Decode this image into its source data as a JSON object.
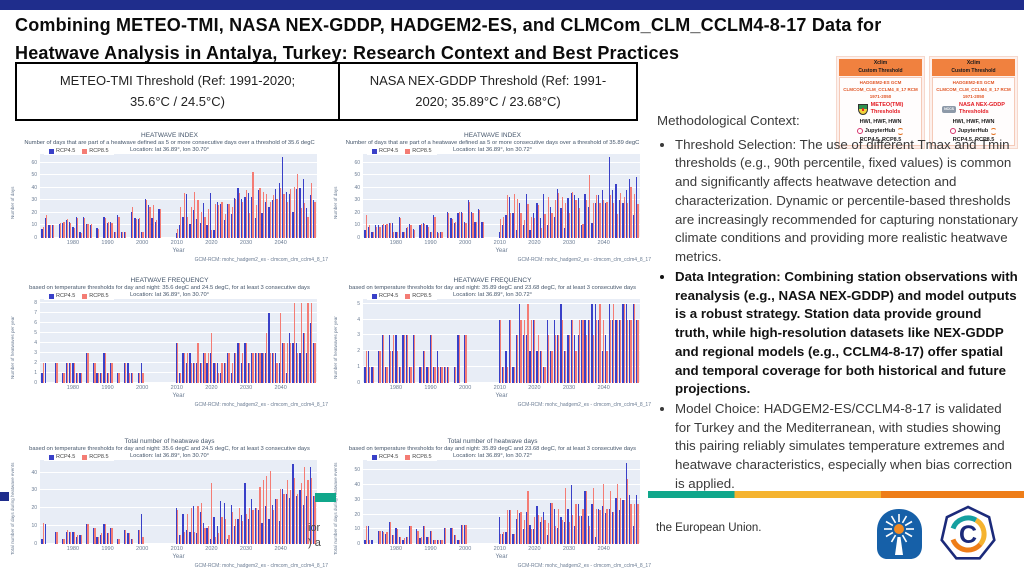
{
  "slide": {
    "title_line1": "Combining METEO-TMI, NASA NEX-GDDP, HADGEM2-ES, and CLMCom_CLM_CCLM4-8-17 Data for",
    "title_line2": "Heatwave Analysis in Antalya, Turkey: Research Context and Best Practices",
    "top_bar_color": "#1f2d8c"
  },
  "threshold_boxes": [
    {
      "label": "METEO-TMI Threshold (Ref: 1991-2020; 35.6°C / 24.5°C)"
    },
    {
      "label": "NASA NEX-GDDP Threshold (Ref: 1991-2020; 35.89°C / 23.68°C)"
    }
  ],
  "cards": [
    {
      "header_tool": "Xclim",
      "header_sub": "Custom Threshold",
      "gcm": "HADGEM2-ES GCM",
      "rcm": "CLMCOM_CLM_CCLM4_8_17 RCM",
      "period": "1971-2050",
      "threshold_source": "METEO(TMI)",
      "threshold_word": "Thresholds",
      "metrics": "HWI, HWF, HWN",
      "platform": "JupyterHub",
      "scenarios": "RCP4.5, RCP8.5"
    },
    {
      "header_tool": "Xclim",
      "header_sub": "Custom Threshold",
      "gcm": "HADGEM2-ES GCM",
      "rcm": "CLMCOM_CLM_CCLM4_8_17 RCM",
      "period": "1971-2050",
      "badge_label": "NCCS",
      "threshold_source": "NASA NEX-GDDP",
      "threshold_word": "Thresholds",
      "metrics": "HWI, HWF, HWN",
      "platform": "JupyterHub",
      "scenarios": "RCP4.5, RCP8.5"
    }
  ],
  "right_panel": {
    "heading": "Methodological Context:",
    "bullets": [
      {
        "bold": false,
        "text": "Threshold Selection: The use of different Tmax and Tmin thresholds (e.g., 90th percentile, fixed values) is common and significantly affects heatwave detection and characterization. Dynamic or percentile-based thresholds are increasingly recommended for capturing nonstationary climate conditions and providing more realistic heatwave metrics."
      },
      {
        "bold": true,
        "text": "Data Integration: Combining station observations with reanalysis (e.g., NASA NEX-GDDP) and model outputs is a robust strategy. Station data provide ground truth, while high-resolution datasets like NEX-GDDP and regional models (e.g., CCLM4-8-17) offer spatial and temporal coverage for both historical and future projections."
      },
      {
        "bold": false,
        "text": "Model Choice: HADGEM2-ES/CCLM4-8-17 is validated for Turkey and the Mediterranean, with studies showing this pairing reliably simulates temperature extremes and heatwave characteristics, especially when bias correction is applied."
      }
    ]
  },
  "footer": {
    "eu_text": "the European Union.",
    "partial_text_line1": "ior",
    "partial_text_line2": ") a",
    "bar_navy": "#1f2d8c",
    "bar_teal": "#10a78b",
    "bar_yellow": "#f5b32f",
    "bar_orange": "#ee7d18"
  },
  "chart_data": [
    {
      "type": "bar",
      "title": "HEATWAVE INDEX",
      "subtitle": "Number of days that are part of a heatwave defined as 5 or more consecutive days over a threshold of 35.6 degC",
      "location": "Location: lat 36.89°, lon 30.70°",
      "ylabel": "Number of days",
      "xlabel": "Year",
      "footer": "GCM-RCM: mohc_hadgem2_es - clmcom_clm_cclm4_8_17",
      "legend": [
        "RCP4.5",
        "RCP8.5"
      ],
      "colors": {
        "rcp45": "#3940c8",
        "rcp85": "#f47c74"
      },
      "ylim": 67,
      "yticks": [
        0,
        10,
        20,
        30,
        40,
        50,
        60
      ],
      "year_start": 1971,
      "xticks": [
        1980,
        1990,
        2000,
        2010,
        2020,
        2030,
        2040
      ],
      "rcp45": [
        7,
        16,
        10,
        10,
        0,
        11,
        12,
        14,
        13,
        9,
        17,
        5,
        17,
        11,
        10,
        0,
        8,
        0,
        17,
        12,
        13,
        5,
        18,
        5,
        5,
        0,
        21,
        16,
        15,
        5,
        31,
        26,
        16,
        13,
        23,
        null,
        null,
        null,
        null,
        4,
        10,
        17,
        35,
        11,
        22,
        15,
        12,
        28,
        10,
        36,
        6,
        29,
        27,
        14,
        27,
        19,
        32,
        40,
        31,
        33,
        36,
        33,
        16,
        38,
        20,
        29,
        25,
        30,
        39,
        44,
        65,
        37,
        35,
        21,
        39,
        40,
        47,
        24,
        34,
        30
      ],
      "rcp85": [
        9,
        18,
        10,
        10,
        0,
        12,
        13,
        15,
        12,
        8,
        16,
        4,
        16,
        11,
        11,
        0,
        7,
        0,
        16,
        13,
        12,
        5,
        17,
        5,
        5,
        0,
        25,
        15,
        16,
        5,
        30,
        25,
        26,
        14,
        23,
        null,
        null,
        null,
        null,
        7,
        25,
        36,
        17,
        25,
        37,
        30,
        21,
        17,
        23,
        6,
        27,
        26,
        29,
        19,
        27,
        25,
        31,
        36,
        29,
        38,
        20,
        53,
        26,
        40,
        37,
        35,
        29,
        34,
        31,
        40,
        35,
        29,
        39,
        41,
        51,
        24,
        28,
        17,
        44,
        29
      ]
    },
    {
      "type": "bar",
      "title": "HEATWAVE INDEX",
      "subtitle": "Number of days that are part of a heatwave defined as 5 or more consecutive days over a threshold of 35.89 degC",
      "location": "Location: lat 36.89°, lon 30.72°",
      "ylabel": "Number of days",
      "xlabel": "Year",
      "footer": "GCM-RCM: mohc_hadgem2_es - clmcom_clm_cclm4_8_17",
      "legend": [
        "RCP4.5",
        "RCP8.5"
      ],
      "colors": {
        "rcp45": "#3940c8",
        "rcp85": "#f47c74"
      },
      "ylim": 67,
      "yticks": [
        0,
        10,
        20,
        30,
        40,
        50,
        60
      ],
      "year_start": 1971,
      "xticks": [
        1980,
        1990,
        2000,
        2010,
        2020,
        2030,
        2040
      ],
      "rcp45": [
        6,
        9,
        5,
        10,
        10,
        10,
        10,
        12,
        12,
        5,
        17,
        5,
        8,
        11,
        7,
        0,
        10,
        12,
        10,
        5,
        18,
        5,
        5,
        0,
        21,
        16,
        12,
        20,
        21,
        13,
        30,
        21,
        13,
        23,
        13,
        null,
        null,
        null,
        null,
        5,
        10,
        18,
        33,
        20,
        6,
        28,
        10,
        35,
        6,
        20,
        28,
        16,
        35,
        10,
        25,
        17,
        39,
        24,
        8,
        32,
        36,
        34,
        32,
        10,
        35,
        25,
        12,
        28,
        34,
        38,
        28,
        65,
        38,
        43,
        30,
        28,
        38,
        47,
        18,
        49
      ],
      "rcp85": [
        18,
        10,
        5,
        9,
        9,
        11,
        11,
        12,
        5,
        5,
        16,
        5,
        9,
        10,
        6,
        0,
        11,
        11,
        9,
        5,
        17,
        4,
        5,
        0,
        20,
        15,
        13,
        21,
        20,
        12,
        29,
        20,
        13,
        22,
        13,
        null,
        null,
        null,
        null,
        15,
        17,
        34,
        20,
        35,
        31,
        20,
        14,
        27,
        17,
        16,
        26,
        8,
        19,
        33,
        20,
        30,
        36,
        33,
        28,
        20,
        37,
        30,
        24,
        11,
        30,
        50,
        28,
        34,
        28,
        30,
        29,
        34,
        28,
        19,
        36,
        33,
        28,
        41,
        35,
        27
      ]
    },
    {
      "type": "bar",
      "title": "HEATWAVE FREQUENCY",
      "subtitle": "based on temperature thresholds for day and night: 35.6 degC and 24.5 degC, for at least 3 consecutive days",
      "location": "Location: lat 36.89°, lon 30.70°",
      "ylabel": "Number of heatwaves per year",
      "xlabel": "Year",
      "footer": "GCM-RCM: mohc_hadgem2_es - clmcom_clm_cclm4_8_17",
      "legend": [
        "RCP4.5",
        "RCP8.5"
      ],
      "colors": {
        "rcp45": "#3940c8",
        "rcp85": "#f47c74"
      },
      "ylim": 8.4,
      "yticks": [
        0,
        1,
        2,
        3,
        4,
        5,
        6,
        7,
        8
      ],
      "year_start": 1971,
      "xticks": [
        1980,
        1990,
        2000,
        2010,
        2020,
        2030,
        2040
      ],
      "rcp45": [
        1,
        2,
        0,
        0,
        2,
        0,
        1,
        2,
        2,
        2,
        1,
        1,
        0,
        3,
        0,
        2,
        1,
        1,
        3,
        1,
        2,
        0,
        1,
        0,
        2,
        2,
        1,
        0,
        1,
        2,
        0,
        0,
        0,
        0,
        0,
        null,
        null,
        null,
        null,
        4,
        1,
        3,
        2,
        3,
        2,
        2,
        2,
        3,
        2,
        3,
        2,
        2,
        1,
        2,
        3,
        1,
        3,
        4,
        2,
        4,
        2,
        3,
        3,
        3,
        3,
        3,
        7,
        3,
        3,
        2,
        4,
        1,
        5,
        4,
        4,
        3,
        5,
        3,
        6,
        4
      ],
      "rcp85": [
        2,
        0,
        0,
        0,
        2,
        0,
        1,
        2,
        2,
        2,
        1,
        1,
        0,
        3,
        0,
        2,
        1,
        1,
        3,
        1,
        2,
        0,
        1,
        0,
        2,
        1,
        1,
        0,
        1,
        1,
        0,
        0,
        0,
        0,
        0,
        null,
        null,
        null,
        null,
        4,
        1,
        3,
        3,
        2,
        2,
        4,
        2,
        3,
        3,
        5,
        2,
        1,
        2,
        2,
        3,
        2,
        3,
        4,
        3,
        4,
        2,
        3,
        3,
        3,
        3,
        5,
        3,
        3,
        2,
        7,
        4,
        4,
        4,
        8,
        3,
        8,
        5,
        8,
        8,
        4
      ]
    },
    {
      "type": "bar",
      "title": "HEATWAVE FREQUENCY",
      "subtitle": "based on temperature thresholds for day and night: 35.89 degC and 23.68 degC, for at least 3 consecutive days",
      "location": "Location: lat 36.89°, lon 30.72°",
      "ylabel": "Number of heatwaves per year",
      "xlabel": "Year",
      "footer": "GCM-RCM: mohc_hadgem2_es - clmcom_clm_cclm4_8_17",
      "legend": [
        "RCP4.5",
        "RCP8.5"
      ],
      "colors": {
        "rcp45": "#3940c8",
        "rcp85": "#f47c74"
      },
      "ylim": 5.3,
      "yticks": [
        0,
        1,
        2,
        3,
        4,
        5
      ],
      "year_start": 1971,
      "xticks": [
        1980,
        1990,
        2000,
        2010,
        2020,
        2030,
        2040
      ],
      "rcp45": [
        1,
        2,
        1,
        0,
        2,
        3,
        1,
        3,
        2,
        3,
        1,
        3,
        3,
        1,
        3,
        0,
        1,
        2,
        1,
        3,
        1,
        2,
        1,
        1,
        1,
        0,
        1,
        3,
        0,
        3,
        0,
        0,
        0,
        0,
        0,
        null,
        null,
        null,
        null,
        4,
        1,
        2,
        4,
        1,
        3,
        5,
        3,
        3,
        2,
        4,
        2,
        2,
        1,
        4,
        2,
        4,
        3,
        5,
        2,
        3,
        4,
        3,
        3,
        4,
        4,
        4,
        5,
        5,
        4,
        2,
        3,
        5,
        4,
        4,
        4,
        5,
        5,
        4,
        5,
        4
      ],
      "rcp85": [
        2,
        1,
        1,
        0,
        2,
        3,
        1,
        2,
        3,
        2,
        1,
        3,
        3,
        1,
        3,
        0,
        1,
        2,
        1,
        3,
        1,
        1,
        1,
        1,
        1,
        0,
        1,
        3,
        0,
        3,
        0,
        0,
        0,
        0,
        0,
        null,
        null,
        null,
        null,
        4,
        1,
        1,
        4,
        1,
        3,
        4,
        4,
        5,
        4,
        4,
        3,
        2,
        1,
        3,
        2,
        3,
        3,
        4,
        2,
        3,
        4,
        2,
        4,
        4,
        3,
        4,
        3,
        4,
        5,
        4,
        2,
        4,
        5,
        4,
        4,
        5,
        4,
        4,
        5,
        4
      ]
    },
    {
      "type": "bar",
      "title": "Total number of heatwave days",
      "subtitle": "based on temperature thresholds for day and night: 35.6 degC and 24.5 degC, for at least 3 consecutive days",
      "location": "Location: lat 36.89°, lon 30.70°",
      "ylabel": "Total number of days during heatwave events",
      "xlabel": "Year",
      "footer": "GCM-RCM: mohc_hadgem2_es - clmcom_clm_cclm4_8_17",
      "legend": [
        "RCP4.5",
        "RCP8.5"
      ],
      "colors": {
        "rcp45": "#3940c8",
        "rcp85": "#f47c74"
      },
      "ylim": 47,
      "yticks": [
        0,
        10,
        20,
        30,
        40
      ],
      "year_start": 1971,
      "xticks": [
        1980,
        1990,
        2000,
        2010,
        2020,
        2030,
        2040
      ],
      "rcp45": [
        3,
        11,
        0,
        0,
        7,
        0,
        3,
        7,
        7,
        7,
        4,
        5,
        0,
        11,
        0,
        9,
        4,
        5,
        11,
        6,
        9,
        0,
        3,
        0,
        8,
        6,
        3,
        0,
        8,
        17,
        0,
        0,
        0,
        0,
        0,
        null,
        null,
        null,
        null,
        20,
        5,
        17,
        8,
        7,
        21,
        6,
        18,
        12,
        9,
        3,
        15,
        10,
        24,
        23,
        3,
        22,
        10,
        14,
        16,
        34,
        14,
        25,
        20,
        19,
        12,
        21,
        14,
        22,
        25,
        13,
        31,
        28,
        26,
        45,
        27,
        30,
        22,
        27,
        43,
        27
      ],
      "rcp85": [
        12,
        0,
        0,
        0,
        7,
        0,
        3,
        8,
        7,
        7,
        5,
        5,
        0,
        11,
        0,
        9,
        4,
        6,
        11,
        6,
        9,
        0,
        3,
        0,
        8,
        6,
        3,
        0,
        8,
        4,
        0,
        0,
        0,
        0,
        0,
        null,
        null,
        null,
        null,
        19,
        5,
        7,
        17,
        20,
        7,
        21,
        23,
        9,
        10,
        34,
        4,
        6,
        15,
        14,
        5,
        18,
        14,
        20,
        13,
        17,
        20,
        19,
        20,
        32,
        36,
        38,
        41,
        19,
        25,
        31,
        28,
        36,
        30,
        37,
        28,
        34,
        43,
        36,
        37,
        27
      ]
    },
    {
      "type": "bar",
      "title": "Total number of heatwave days",
      "subtitle": "based on temperature thresholds for day and night: 35.89 degC and 23.68 degC, for at least 3 consecutive days",
      "location": "Location: lat 36.89°, lon 30.72°",
      "ylabel": "Total number of days during heatwave events",
      "xlabel": "Year",
      "footer": "GCM-RCM: mohc_hadgem2_es - clmcom_clm_cclm4_8_17",
      "legend": [
        "RCP4.5",
        "RCP8.5"
      ],
      "colors": {
        "rcp45": "#3940c8",
        "rcp85": "#f47c74"
      },
      "ylim": 57,
      "yticks": [
        0,
        10,
        20,
        30,
        40,
        50
      ],
      "year_start": 1971,
      "xticks": [
        1980,
        1990,
        2000,
        2010,
        2020,
        2030,
        2040
      ],
      "rcp45": [
        3,
        12,
        3,
        0,
        9,
        9,
        7,
        15,
        6,
        11,
        5,
        3,
        5,
        12,
        0,
        10,
        4,
        12,
        5,
        9,
        3,
        3,
        3,
        11,
        0,
        11,
        6,
        3,
        13,
        13,
        0,
        0,
        0,
        0,
        0,
        null,
        null,
        null,
        null,
        18,
        7,
        8,
        23,
        7,
        17,
        21,
        10,
        22,
        13,
        10,
        26,
        15,
        22,
        6,
        28,
        24,
        11,
        18,
        15,
        24,
        40,
        12,
        27,
        19,
        36,
        19,
        27,
        5,
        24,
        26,
        21,
        24,
        22,
        31,
        23,
        30,
        55,
        33,
        12,
        33
      ],
      "rcp85": [
        12,
        3,
        0,
        0,
        9,
        8,
        8,
        15,
        6,
        10,
        5,
        4,
        5,
        12,
        0,
        9,
        5,
        12,
        5,
        9,
        3,
        3,
        3,
        11,
        0,
        11,
        6,
        3,
        13,
        13,
        0,
        0,
        0,
        0,
        0,
        null,
        null,
        null,
        null,
        7,
        8,
        23,
        23,
        7,
        23,
        22,
        16,
        36,
        10,
        18,
        20,
        18,
        16,
        14,
        28,
        12,
        24,
        16,
        38,
        15,
        20,
        27,
        19,
        24,
        36,
        12,
        38,
        24,
        23,
        41,
        24,
        36,
        22,
        41,
        31,
        30,
        44,
        27,
        27,
        27
      ]
    }
  ]
}
